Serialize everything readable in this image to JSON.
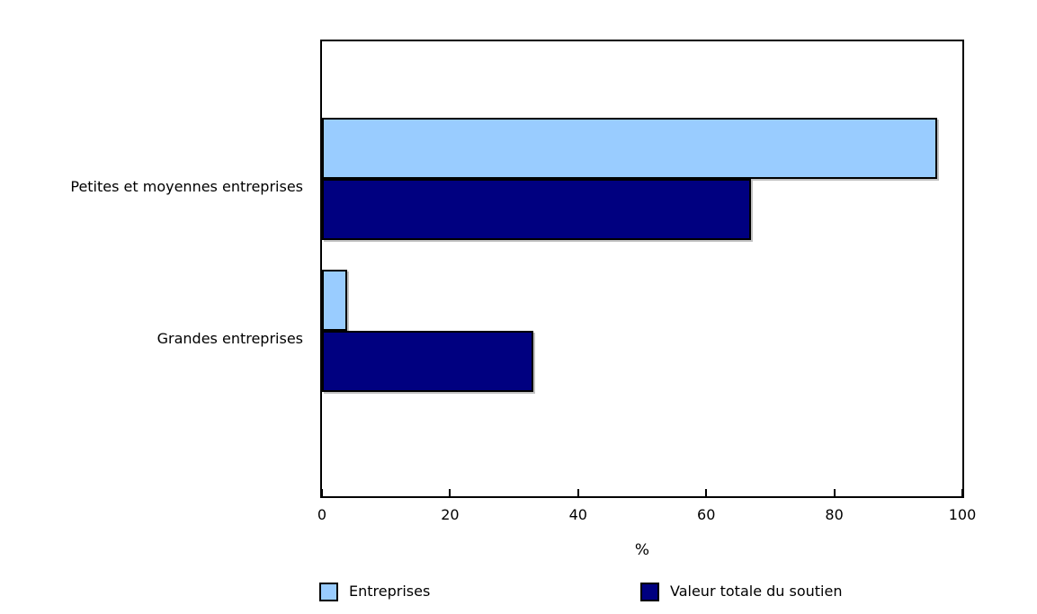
{
  "chart_data": {
    "type": "bar",
    "orientation": "horizontal",
    "title": "",
    "categories": [
      "Petites et moyennes entreprises",
      "Grandes entreprises"
    ],
    "series": [
      {
        "name": "Entreprises",
        "color": "#99CCFF",
        "values": [
          96,
          4
        ]
      },
      {
        "name": "Valeur totale du soutien",
        "color": "#000080",
        "values": [
          67,
          33
        ]
      }
    ],
    "xlabel": "%",
    "xlim": [
      0,
      100
    ],
    "xticks": [
      0,
      20,
      40,
      60,
      80,
      100
    ],
    "grid": false,
    "legend_position": "bottom",
    "bar_border_color": "#000000",
    "frame_color": "#000000",
    "background_color": "#FFFFFF"
  }
}
